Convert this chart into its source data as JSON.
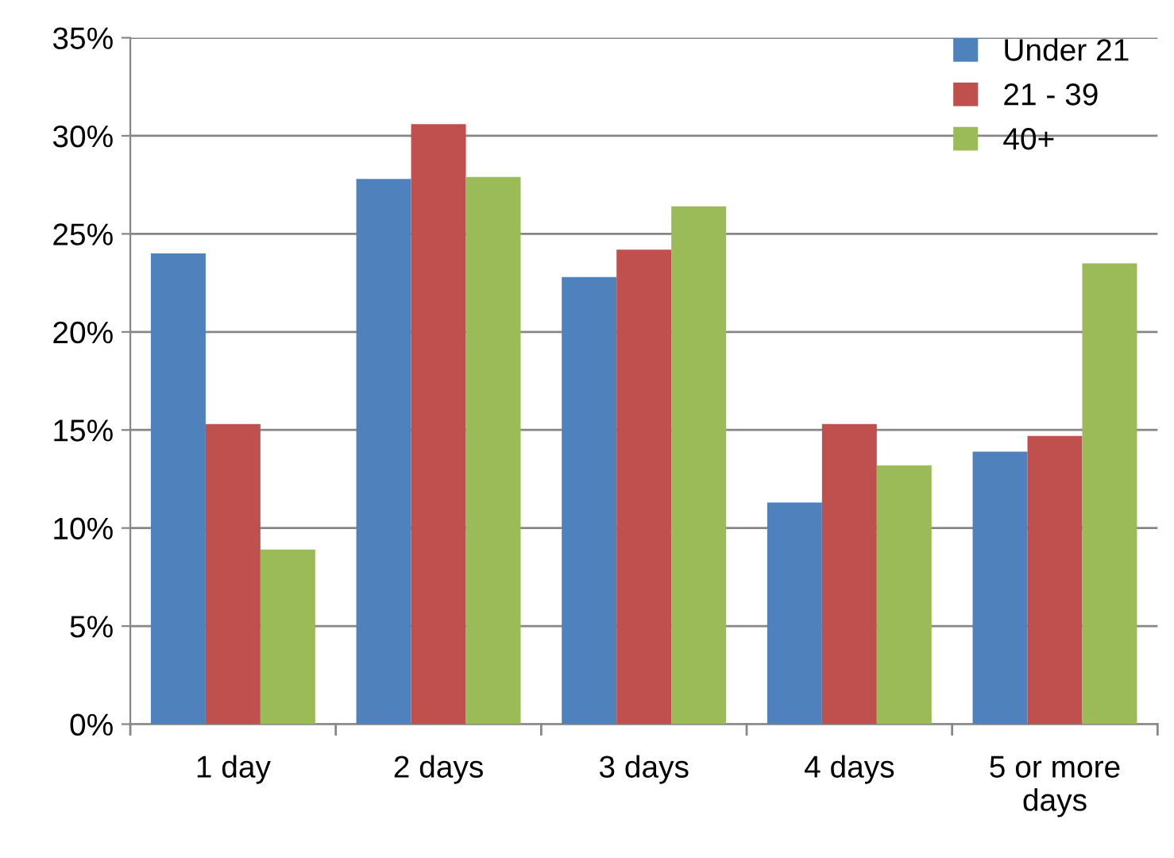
{
  "chart_data": {
    "type": "bar",
    "categories": [
      "1 day",
      "2 days",
      "3 days",
      "4 days",
      "5 or more days"
    ],
    "series": [
      {
        "name": "Under 21",
        "color": "#4f81bd",
        "values": [
          24.0,
          27.8,
          22.8,
          11.3,
          13.9
        ]
      },
      {
        "name": "21 - 39",
        "color": "#c0504d",
        "values": [
          15.3,
          30.6,
          24.2,
          15.3,
          14.7
        ]
      },
      {
        "name": "40+",
        "color": "#9bbb59",
        "values": [
          8.9,
          27.9,
          26.4,
          13.2,
          23.5
        ]
      }
    ],
    "ylim": [
      0,
      35
    ],
    "yticks": [
      {
        "value": 0,
        "label": "0%"
      },
      {
        "value": 5,
        "label": "5%"
      },
      {
        "value": 10,
        "label": "10%"
      },
      {
        "value": 15,
        "label": "15%"
      },
      {
        "value": 20,
        "label": "20%"
      },
      {
        "value": 25,
        "label": "25%"
      },
      {
        "value": 30,
        "label": "30%"
      },
      {
        "value": 35,
        "label": "35%"
      }
    ],
    "grid": "y",
    "legend": "top right"
  }
}
